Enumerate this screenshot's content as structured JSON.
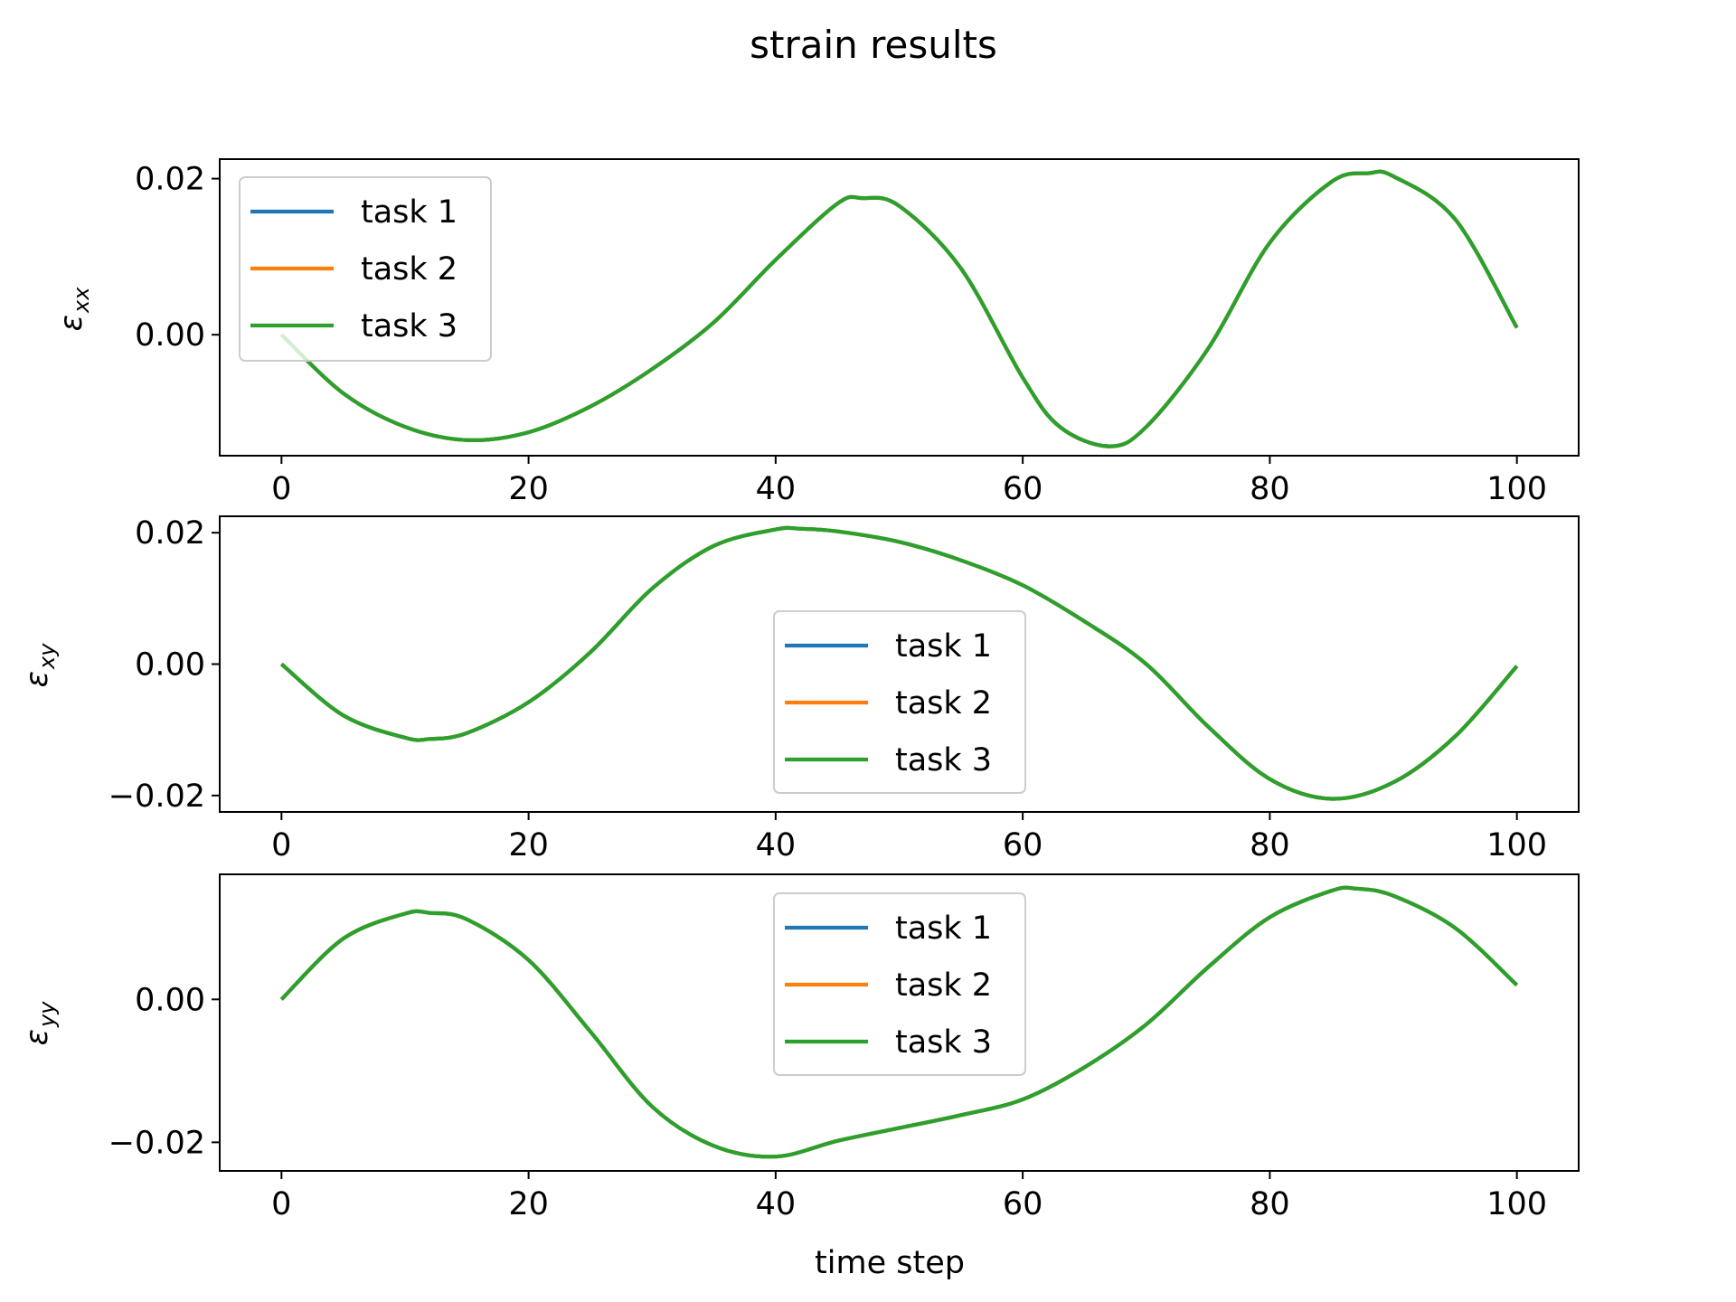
{
  "figure": {
    "title": "strain results",
    "xlabel": "time step"
  },
  "chart_data": [
    {
      "type": "line",
      "ylabel": "ε",
      "ylabel_sub": "xx",
      "xlim": [
        -5,
        105
      ],
      "ylim": [
        -0.0155,
        0.0225
      ],
      "xticks": [
        0,
        20,
        40,
        60,
        80,
        100
      ],
      "xtick_labels": [
        "0",
        "20",
        "40",
        "60",
        "80",
        "100"
      ],
      "yticks": [
        0.0,
        0.02
      ],
      "ytick_labels": [
        "0.00",
        "0.02"
      ],
      "legend_position": "upper-left",
      "series": [
        {
          "name": "task 1",
          "color": "#1f77b4"
        },
        {
          "name": "task 2",
          "color": "#ff7f0e"
        },
        {
          "name": "task 3",
          "color": "#2ca02c"
        }
      ],
      "x": [
        0,
        5,
        10,
        15,
        20,
        25,
        30,
        35,
        40,
        45,
        47,
        50,
        55,
        60,
        63,
        67,
        70,
        75,
        80,
        85,
        88,
        90,
        95,
        100
      ],
      "y": [
        0.0,
        -0.0075,
        -0.0118,
        -0.0135,
        -0.0125,
        -0.0092,
        -0.0044,
        0.0016,
        0.0096,
        0.0168,
        0.0175,
        0.0165,
        0.0085,
        -0.0055,
        -0.0118,
        -0.0143,
        -0.0118,
        -0.0018,
        0.0118,
        0.0196,
        0.0207,
        0.0203,
        0.0148,
        0.0009
      ]
    },
    {
      "type": "line",
      "ylabel": "ε",
      "ylabel_sub": "xy",
      "xlim": [
        -5,
        105
      ],
      "ylim": [
        -0.0225,
        0.0225
      ],
      "xticks": [
        0,
        20,
        40,
        60,
        80,
        100
      ],
      "xtick_labels": [
        "0",
        "20",
        "40",
        "60",
        "80",
        "100"
      ],
      "yticks": [
        -0.02,
        0.0,
        0.02
      ],
      "ytick_labels": [
        "−0.02",
        "0.00",
        "0.02"
      ],
      "legend_position": "center",
      "series": [
        {
          "name": "task 1",
          "color": "#1f77b4"
        },
        {
          "name": "task 2",
          "color": "#ff7f0e"
        },
        {
          "name": "task 3",
          "color": "#2ca02c"
        }
      ],
      "x": [
        0,
        5,
        10,
        12,
        15,
        20,
        25,
        30,
        35,
        40,
        42,
        45,
        50,
        55,
        60,
        65,
        70,
        75,
        80,
        85,
        90,
        95,
        100
      ],
      "y": [
        0.0,
        -0.0078,
        -0.0112,
        -0.0114,
        -0.0105,
        -0.0058,
        0.0018,
        0.0115,
        0.018,
        0.0205,
        0.0206,
        0.0202,
        0.0186,
        0.0158,
        0.012,
        0.0065,
        0.0,
        -0.0095,
        -0.0175,
        -0.0205,
        -0.018,
        -0.011,
        -0.0003
      ]
    },
    {
      "type": "line",
      "ylabel": "ε",
      "ylabel_sub": "yy",
      "xlim": [
        -5,
        105
      ],
      "ylim": [
        -0.024,
        0.0175
      ],
      "xticks": [
        0,
        20,
        40,
        60,
        80,
        100
      ],
      "xtick_labels": [
        "0",
        "20",
        "40",
        "60",
        "80",
        "100"
      ],
      "yticks": [
        -0.02,
        0.0
      ],
      "ytick_labels": [
        "−0.02",
        "0.00"
      ],
      "legend_position": "upper-center",
      "series": [
        {
          "name": "task 1",
          "color": "#1f77b4"
        },
        {
          "name": "task 2",
          "color": "#ff7f0e"
        },
        {
          "name": "task 3",
          "color": "#2ca02c"
        }
      ],
      "x": [
        0,
        5,
        10,
        12,
        15,
        20,
        25,
        30,
        35,
        40,
        45,
        50,
        55,
        60,
        65,
        70,
        75,
        80,
        85,
        87,
        90,
        95,
        100
      ],
      "y": [
        0.0,
        0.0085,
        0.012,
        0.0121,
        0.0112,
        0.0055,
        -0.0045,
        -0.015,
        -0.0205,
        -0.022,
        -0.0198,
        -0.018,
        -0.0162,
        -0.014,
        -0.0095,
        -0.0035,
        0.0045,
        0.0115,
        0.0152,
        0.0155,
        0.0145,
        0.01,
        0.002
      ]
    }
  ]
}
